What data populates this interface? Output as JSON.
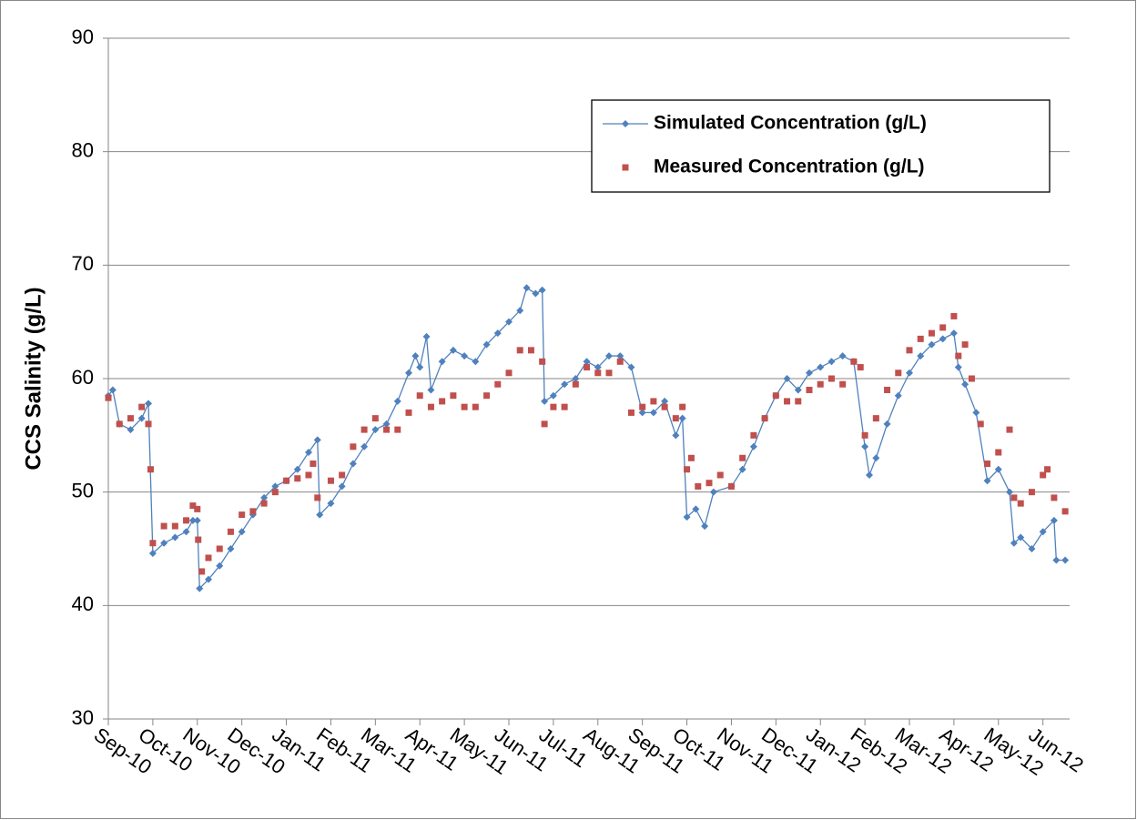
{
  "chart_data": {
    "type": "line",
    "y_label": "CCS Salinity (g/L)",
    "ylim": [
      30,
      90
    ],
    "yticks": [
      30,
      40,
      50,
      60,
      70,
      80,
      90
    ],
    "xlim": [
      0,
      21.6
    ],
    "xticks": [
      {
        "value": 0,
        "label": "Sep-10"
      },
      {
        "value": 1,
        "label": "Oct-10"
      },
      {
        "value": 2,
        "label": "Nov-10"
      },
      {
        "value": 3,
        "label": "Dec-10"
      },
      {
        "value": 4,
        "label": "Jan-11"
      },
      {
        "value": 5,
        "label": "Feb-11"
      },
      {
        "value": 6,
        "label": "Mar-11"
      },
      {
        "value": 7,
        "label": "Apr-11"
      },
      {
        "value": 8,
        "label": "May-11"
      },
      {
        "value": 9,
        "label": "Jun-11"
      },
      {
        "value": 10,
        "label": "Jul-11"
      },
      {
        "value": 11,
        "label": "Aug-11"
      },
      {
        "value": 12,
        "label": "Sep-11"
      },
      {
        "value": 13,
        "label": "Oct-11"
      },
      {
        "value": 14,
        "label": "Nov-11"
      },
      {
        "value": 15,
        "label": "Dec-11"
      },
      {
        "value": 16,
        "label": "Jan-12"
      },
      {
        "value": 17,
        "label": "Feb-12"
      },
      {
        "value": 18,
        "label": "Mar-12"
      },
      {
        "value": 19,
        "label": "Apr-12"
      },
      {
        "value": 20,
        "label": "May-12"
      },
      {
        "value": 21,
        "label": "Jun-12"
      }
    ],
    "grid": true,
    "legend": "upper right",
    "series": [
      {
        "name": "Simulated Concentration (g/L)",
        "color": "#4f81bd",
        "line": true,
        "marker": "diamond",
        "x": [
          0,
          0.1,
          0.25,
          0.5,
          0.75,
          0.9,
          1.0,
          1.25,
          1.5,
          1.75,
          1.9,
          2.0,
          2.05,
          2.25,
          2.5,
          2.75,
          3.0,
          3.25,
          3.5,
          3.75,
          4.0,
          4.25,
          4.5,
          4.7,
          4.75,
          5.0,
          5.25,
          5.5,
          5.75,
          6.0,
          6.25,
          6.5,
          6.75,
          6.9,
          7.0,
          7.15,
          7.25,
          7.5,
          7.75,
          8.0,
          8.25,
          8.5,
          8.75,
          9.0,
          9.25,
          9.4,
          9.6,
          9.75,
          9.8,
          10.0,
          10.25,
          10.5,
          10.75,
          11.0,
          11.25,
          11.5,
          11.75,
          12.0,
          12.25,
          12.5,
          12.75,
          12.9,
          13.0,
          13.2,
          13.4,
          13.6,
          14.0,
          14.25,
          14.5,
          14.75,
          15.0,
          15.25,
          15.5,
          15.75,
          16.0,
          16.25,
          16.5,
          16.75,
          17.0,
          17.1,
          17.25,
          17.5,
          17.75,
          18.0,
          18.25,
          18.5,
          18.75,
          19.0,
          19.1,
          19.25,
          19.5,
          19.75,
          20.0,
          20.25,
          20.35,
          20.5,
          20.75,
          21.0,
          21.25,
          21.3,
          21.5
        ],
        "values": [
          58.5,
          59,
          56,
          55.5,
          56.5,
          57.8,
          44.6,
          45.5,
          46,
          46.5,
          47.5,
          47.5,
          41.5,
          42.3,
          43.5,
          45,
          46.5,
          48,
          49.5,
          50.5,
          51,
          52,
          53.5,
          54.6,
          48,
          49,
          50.5,
          52.5,
          54,
          55.5,
          56,
          58,
          60.5,
          62,
          61,
          63.7,
          59,
          61.5,
          62.5,
          62,
          61.5,
          63,
          64,
          65,
          66,
          68,
          67.5,
          67.8,
          58,
          58.5,
          59.5,
          60,
          61.5,
          61,
          62,
          62,
          61,
          57,
          57,
          58,
          55,
          56.5,
          47.8,
          48.5,
          47,
          50,
          50.5,
          52,
          54,
          56.5,
          58.5,
          60,
          59,
          60.5,
          61,
          61.5,
          62,
          61.5,
          54,
          51.5,
          53,
          56,
          58.5,
          60.5,
          62,
          63,
          63.5,
          64,
          61,
          59.5,
          57,
          51,
          52,
          50,
          45.5,
          46,
          45,
          46.5,
          47.5,
          44,
          44
        ]
      },
      {
        "name": "Measured Concentration (g/L)",
        "color": "#c0504d",
        "line": false,
        "marker": "square",
        "x": [
          0,
          0.25,
          0.5,
          0.75,
          0.9,
          0.95,
          1.0,
          1.25,
          1.5,
          1.75,
          1.9,
          2.0,
          2.02,
          2.1,
          2.25,
          2.5,
          2.75,
          3.0,
          3.25,
          3.5,
          3.75,
          4.0,
          4.25,
          4.5,
          4.6,
          4.7,
          5.0,
          5.25,
          5.5,
          5.75,
          6.0,
          6.25,
          6.5,
          6.75,
          7.0,
          7.25,
          7.5,
          7.75,
          8.0,
          8.25,
          8.5,
          8.75,
          9.0,
          9.25,
          9.5,
          9.75,
          9.8,
          10.0,
          10.25,
          10.5,
          10.75,
          11.0,
          11.25,
          11.5,
          11.75,
          12.0,
          12.25,
          12.5,
          12.75,
          12.9,
          13.0,
          13.1,
          13.25,
          13.5,
          13.75,
          14.0,
          14.25,
          14.5,
          14.75,
          15.0,
          15.25,
          15.5,
          15.75,
          16.0,
          16.25,
          16.5,
          16.75,
          16.9,
          17.0,
          17.25,
          17.5,
          17.75,
          18.0,
          18.25,
          18.5,
          18.75,
          19.0,
          19.1,
          19.25,
          19.4,
          19.6,
          19.75,
          20.0,
          20.25,
          20.35,
          20.5,
          20.75,
          21.0,
          21.1,
          21.25,
          21.5
        ],
        "values": [
          58.3,
          56,
          56.5,
          57.5,
          56,
          52,
          45.5,
          47,
          47,
          47.5,
          48.8,
          48.5,
          45.8,
          43,
          44.2,
          45,
          46.5,
          48,
          48.3,
          49,
          50,
          51,
          51.2,
          51.5,
          52.5,
          49.5,
          51,
          51.5,
          54,
          55.5,
          56.5,
          55.5,
          55.5,
          57,
          58.5,
          57.5,
          58,
          58.5,
          57.5,
          57.5,
          58.5,
          59.5,
          60.5,
          62.5,
          62.5,
          61.5,
          56,
          57.5,
          57.5,
          59.5,
          61,
          60.5,
          60.5,
          61.5,
          57,
          57.5,
          58,
          57.5,
          56.5,
          57.5,
          52,
          53,
          50.5,
          50.8,
          51.5,
          50.5,
          53,
          55,
          56.5,
          58.5,
          58,
          58,
          59,
          59.5,
          60,
          59.5,
          61.5,
          61,
          55,
          56.5,
          59,
          60.5,
          62.5,
          63.5,
          64,
          64.5,
          65.5,
          62,
          63,
          60,
          56,
          52.5,
          53.5,
          55.5,
          49.5,
          49,
          50,
          51.5,
          52,
          49.5,
          48.3
        ]
      }
    ]
  }
}
